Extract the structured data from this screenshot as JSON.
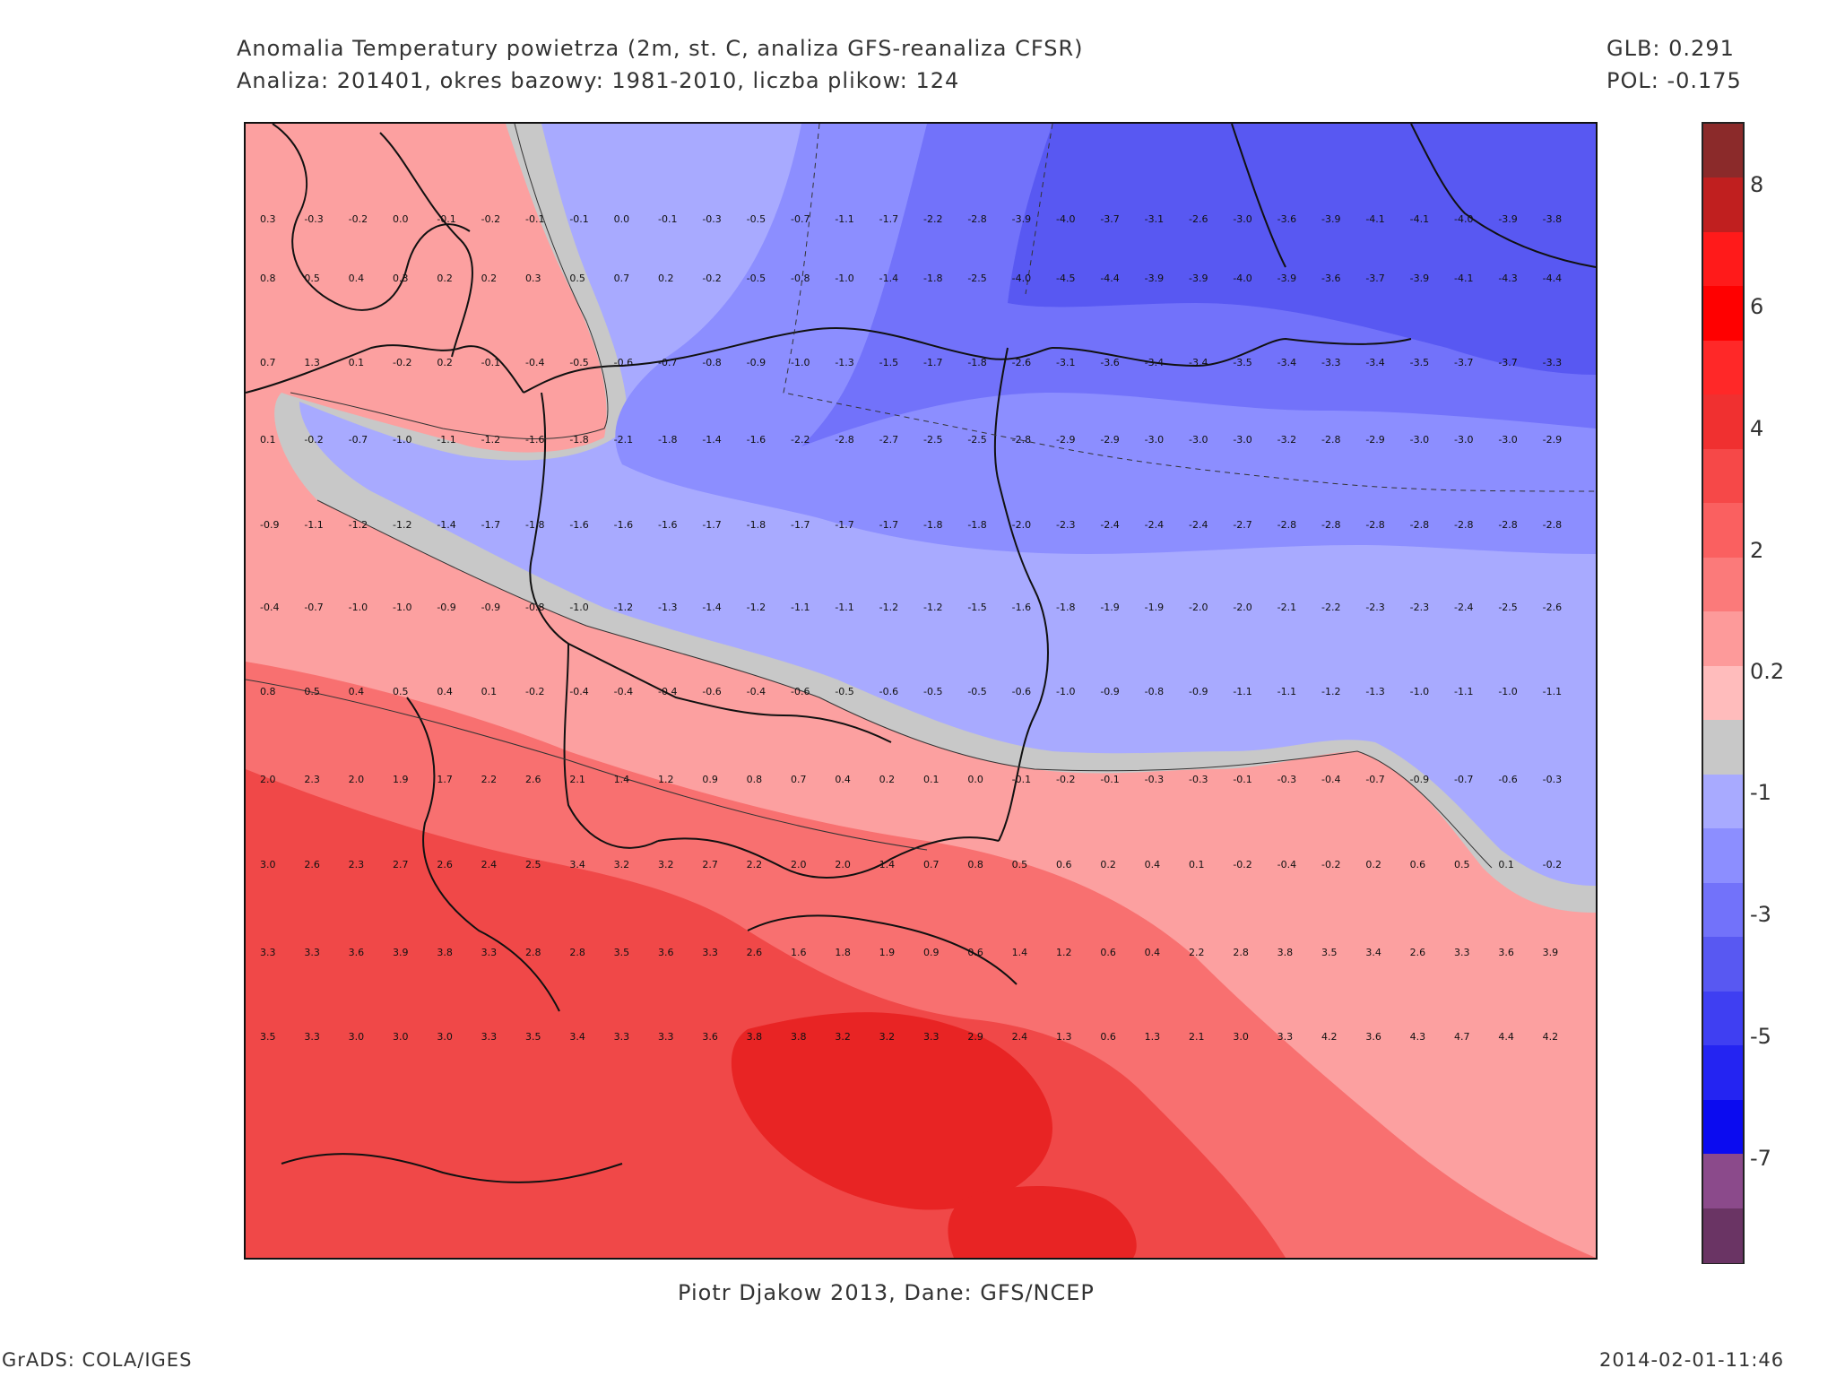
{
  "header": {
    "title_line1": "Anomalia Temperatury powietrza (2m, st. C, analiza GFS-reanaliza CFSR)",
    "title_line2": "Analiza: 201401, okres bazowy: 1981-2010, liczba plikow: 124",
    "glb": "GLB: 0.291",
    "pol": "POL: -0.175"
  },
  "footer": {
    "credit": "Piotr Djakow 2013, Dane: GFS/NCEP",
    "software": "GrADS: COLA/IGES",
    "timestamp": "2014-02-01-11:46"
  },
  "colorbar": {
    "labels": [
      "8",
      "6",
      "4",
      "2",
      "0.2",
      "-1",
      "-3",
      "-5",
      "-7"
    ],
    "colors": [
      "#8b2a2a",
      "#c01f1f",
      "#ff1a1a",
      "#ff0000",
      "#ff2828",
      "#f03030",
      "#f64848",
      "#fa6060",
      "#fb7a7a",
      "#fd9a9a",
      "#ffbcbc",
      "#c8c8c8",
      "#a8aaff",
      "#8c8eff",
      "#7272fa",
      "#5858f2",
      "#3f3ff2",
      "#2424f2",
      "#0b0bf0",
      "#8b4a8b",
      "#6a3464"
    ]
  },
  "map": {
    "colors": {
      "warm3": "#f04848",
      "warm2": "#f87070",
      "warm1": "#fca0a0",
      "warm0": "#ffbcbc",
      "neutral": "#c8c8c8",
      "cold0": "#a8aaff",
      "cold1": "#8c8eff",
      "cold2": "#7272fa",
      "cold3": "#5858f2",
      "cold4": "#4444ee",
      "hot": "#e82424"
    },
    "grid_rows": [
      {
        "y": 110,
        "values": [
          "0.3",
          "-0.3",
          "-0.2",
          "0.0",
          "-0.1",
          "-0.2",
          "-0.1",
          "-0.1",
          "0.0",
          "-0.1",
          "-0.3",
          "-0.5",
          "-0.7",
          "-1.1",
          "-1.7",
          "-2.2",
          "-2.8",
          "-3.9",
          "-4.0",
          "-3.7",
          "-3.1",
          "-2.6",
          "-3.0",
          "-3.6",
          "-3.9",
          "-4.1",
          "-4.1",
          "-4.0",
          "-3.9",
          "-3.8"
        ]
      },
      {
        "y": 176,
        "values": [
          "0.8",
          "0.5",
          "0.4",
          "0.3",
          "0.2",
          "0.2",
          "0.3",
          "0.5",
          "0.7",
          "0.2",
          "-0.2",
          "-0.5",
          "-0.8",
          "-1.0",
          "-1.4",
          "-1.8",
          "-2.5",
          "-4.0",
          "-4.5",
          "-4.4",
          "-3.9",
          "-3.9",
          "-4.0",
          "-3.9",
          "-3.6",
          "-3.7",
          "-3.9",
          "-4.1",
          "-4.3",
          "-4.4"
        ]
      },
      {
        "y": 270,
        "values": [
          "0.7",
          "1.3",
          "0.1",
          "-0.2",
          "0.2",
          "-0.1",
          "-0.4",
          "-0.5",
          "-0.6",
          "-0.7",
          "-0.8",
          "-0.9",
          "-1.0",
          "-1.3",
          "-1.5",
          "-1.7",
          "-1.8",
          "-2.6",
          "-3.1",
          "-3.6",
          "-3.4",
          "-3.4",
          "-3.5",
          "-3.4",
          "-3.3",
          "-3.4",
          "-3.5",
          "-3.7",
          "-3.7",
          "-3.3"
        ]
      },
      {
        "y": 356,
        "values": [
          "0.1",
          "-0.2",
          "-0.7",
          "-1.0",
          "-1.1",
          "-1.2",
          "-1.6",
          "-1.8",
          "-2.1",
          "-1.8",
          "-1.4",
          "-1.6",
          "-2.2",
          "-2.8",
          "-2.7",
          "-2.5",
          "-2.5",
          "-2.8",
          "-2.9",
          "-2.9",
          "-3.0",
          "-3.0",
          "-3.0",
          "-3.2",
          "-2.8",
          "-2.9",
          "-3.0",
          "-3.0",
          "-3.0",
          "-2.9"
        ]
      },
      {
        "y": 451,
        "values": [
          "-0.9",
          "-1.1",
          "-1.2",
          "-1.2",
          "-1.4",
          "-1.7",
          "-1.8",
          "-1.6",
          "-1.6",
          "-1.6",
          "-1.7",
          "-1.8",
          "-1.7",
          "-1.7",
          "-1.7",
          "-1.8",
          "-1.8",
          "-2.0",
          "-2.3",
          "-2.4",
          "-2.4",
          "-2.4",
          "-2.7",
          "-2.8",
          "-2.8",
          "-2.8",
          "-2.8",
          "-2.8",
          "-2.8",
          "-2.8"
        ]
      },
      {
        "y": 543,
        "values": [
          "-0.4",
          "-0.7",
          "-1.0",
          "-1.0",
          "-0.9",
          "-0.9",
          "-0.8",
          "-1.0",
          "-1.2",
          "-1.3",
          "-1.4",
          "-1.2",
          "-1.1",
          "-1.1",
          "-1.2",
          "-1.2",
          "-1.5",
          "-1.6",
          "-1.8",
          "-1.9",
          "-1.9",
          "-2.0",
          "-2.0",
          "-2.1",
          "-2.2",
          "-2.3",
          "-2.3",
          "-2.4",
          "-2.5",
          "-2.6"
        ]
      },
      {
        "y": 637,
        "values": [
          "0.8",
          "0.5",
          "0.4",
          "0.5",
          "0.4",
          "0.1",
          "-0.2",
          "-0.4",
          "-0.4",
          "-0.4",
          "-0.6",
          "-0.4",
          "-0.6",
          "-0.5",
          "-0.6",
          "-0.5",
          "-0.5",
          "-0.6",
          "-1.0",
          "-0.9",
          "-0.8",
          "-0.9",
          "-1.1",
          "-1.1",
          "-1.2",
          "-1.3",
          "-1.0",
          "-1.1",
          "-1.0",
          "-1.1"
        ]
      },
      {
        "y": 735,
        "values": [
          "2.0",
          "2.3",
          "2.0",
          "1.9",
          "1.7",
          "2.2",
          "2.6",
          "2.1",
          "1.4",
          "1.2",
          "0.9",
          "0.8",
          "0.7",
          "0.4",
          "0.2",
          "0.1",
          "0.0",
          "-0.1",
          "-0.2",
          "-0.1",
          "-0.3",
          "-0.3",
          "-0.1",
          "-0.3",
          "-0.4",
          "-0.7",
          "-0.9",
          "-0.7",
          "-0.6",
          "-0.3"
        ]
      },
      {
        "y": 830,
        "values": [
          "3.0",
          "2.6",
          "2.3",
          "2.7",
          "2.6",
          "2.4",
          "2.5",
          "3.4",
          "3.2",
          "3.2",
          "2.7",
          "2.2",
          "2.0",
          "2.0",
          "1.4",
          "0.7",
          "0.8",
          "0.5",
          "0.6",
          "0.2",
          "0.4",
          "0.1",
          "-0.2",
          "-0.4",
          "-0.2",
          "0.2",
          "0.6",
          "0.5",
          "0.1",
          "-0.2"
        ]
      },
      {
        "y": 928,
        "values": [
          "3.3",
          "3.3",
          "3.6",
          "3.9",
          "3.8",
          "3.3",
          "2.8",
          "2.8",
          "3.5",
          "3.6",
          "3.3",
          "2.6",
          "1.6",
          "1.8",
          "1.9",
          "0.9",
          "0.6",
          "1.4",
          "1.2",
          "0.6",
          "0.4",
          "2.2",
          "2.8",
          "3.8",
          "3.5",
          "3.4",
          "2.6",
          "3.3",
          "3.6",
          "3.9"
        ]
      },
      {
        "y": 1022,
        "values": [
          "3.5",
          "3.3",
          "3.0",
          "3.0",
          "3.0",
          "3.3",
          "3.5",
          "3.4",
          "3.3",
          "3.3",
          "3.6",
          "3.8",
          "3.8",
          "3.2",
          "3.2",
          "3.3",
          "2.9",
          "2.4",
          "1.3",
          "0.6",
          "1.3",
          "2.1",
          "3.0",
          "3.3",
          "4.2",
          "3.6",
          "4.3",
          "4.7",
          "4.4",
          "4.2"
        ]
      }
    ]
  }
}
